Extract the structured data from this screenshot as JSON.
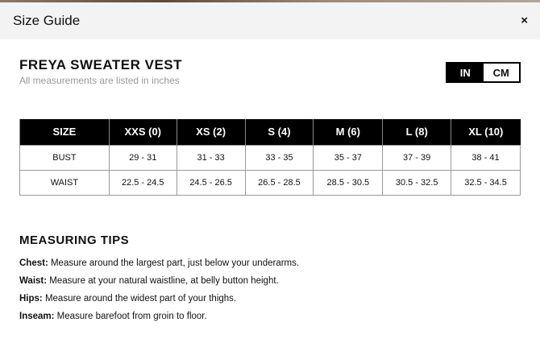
{
  "header": {
    "title": "Size Guide",
    "close": "×"
  },
  "product": {
    "title": "FREYA SWEATER VEST",
    "subtitle": "All measurements are listed in inches"
  },
  "units": {
    "options": [
      "IN",
      "CM"
    ],
    "selected": "IN"
  },
  "table": {
    "headers": [
      "SIZE",
      "XXS (0)",
      "XS (2)",
      "S (4)",
      "M (6)",
      "L (8)",
      "XL (10)"
    ],
    "rows": [
      [
        "BUST",
        "29 - 31",
        "31 - 33",
        "33 - 35",
        "35 - 37",
        "37 - 39",
        "38 - 41"
      ],
      [
        "WAIST",
        "22.5 - 24.5",
        "24.5 - 26.5",
        "26.5 - 28.5",
        "28.5 - 30.5",
        "30.5 - 32.5",
        "32.5 - 34.5"
      ]
    ]
  },
  "tips": {
    "title": "MEASURING TIPS",
    "items": [
      {
        "label": "Chest:",
        "text": " Measure around the largest part, just below your underarms."
      },
      {
        "label": "Waist:",
        "text": " Measure at your natural waistline, at belly button height."
      },
      {
        "label": "Hips:",
        "text": " Measure around the widest part of your thighs."
      },
      {
        "label": "Inseam:",
        "text": " Measure barefoot from groin to floor."
      }
    ]
  }
}
